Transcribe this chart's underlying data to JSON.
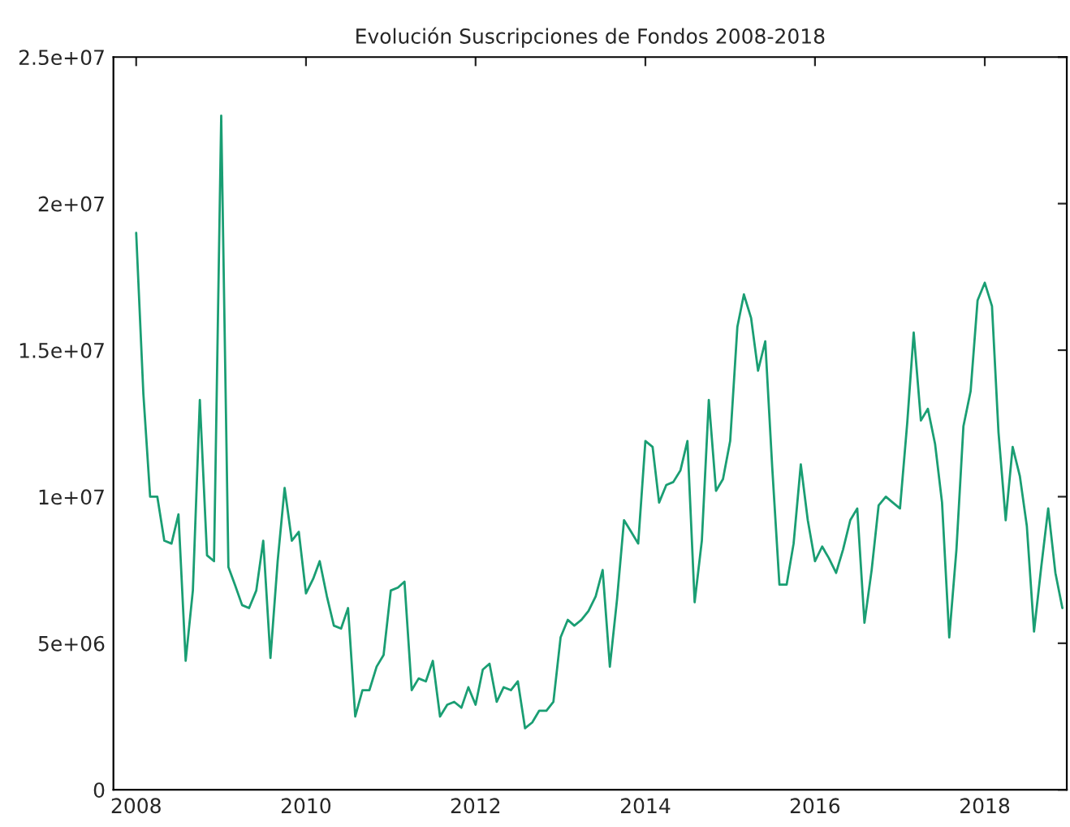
{
  "chart_data": {
    "type": "line",
    "title": "Evolución Suscripciones de Fondos 2008-2018",
    "x": [
      "2008-01",
      "2008-02",
      "2008-03",
      "2008-04",
      "2008-05",
      "2008-06",
      "2008-07",
      "2008-08",
      "2008-09",
      "2008-10",
      "2008-11",
      "2008-12",
      "2009-01",
      "2009-02",
      "2009-03",
      "2009-04",
      "2009-05",
      "2009-06",
      "2009-07",
      "2009-08",
      "2009-09",
      "2009-10",
      "2009-11",
      "2009-12",
      "2010-01",
      "2010-02",
      "2010-03",
      "2010-04",
      "2010-05",
      "2010-06",
      "2010-07",
      "2010-08",
      "2010-09",
      "2010-10",
      "2010-11",
      "2010-12",
      "2011-01",
      "2011-02",
      "2011-03",
      "2011-04",
      "2011-05",
      "2011-06",
      "2011-07",
      "2011-08",
      "2011-09",
      "2011-10",
      "2011-11",
      "2011-12",
      "2012-01",
      "2012-02",
      "2012-03",
      "2012-04",
      "2012-05",
      "2012-06",
      "2012-07",
      "2012-08",
      "2012-09",
      "2012-10",
      "2012-11",
      "2012-12",
      "2013-01",
      "2013-02",
      "2013-03",
      "2013-04",
      "2013-05",
      "2013-06",
      "2013-07",
      "2013-08",
      "2013-09",
      "2013-10",
      "2013-11",
      "2013-12",
      "2014-01",
      "2014-02",
      "2014-03",
      "2014-04",
      "2014-05",
      "2014-06",
      "2014-07",
      "2014-08",
      "2014-09",
      "2014-10",
      "2014-11",
      "2014-12",
      "2015-01",
      "2015-02",
      "2015-03",
      "2015-04",
      "2015-05",
      "2015-06",
      "2015-07",
      "2015-08",
      "2015-09",
      "2015-10",
      "2015-11",
      "2015-12",
      "2016-01",
      "2016-02",
      "2016-03",
      "2016-04",
      "2016-05",
      "2016-06",
      "2016-07",
      "2016-08",
      "2016-09",
      "2016-10",
      "2016-11",
      "2016-12",
      "2017-01",
      "2017-02",
      "2017-03",
      "2017-04",
      "2017-05",
      "2017-06",
      "2017-07",
      "2017-08",
      "2017-09",
      "2017-10",
      "2017-11",
      "2017-12",
      "2018-01",
      "2018-02",
      "2018-03",
      "2018-04",
      "2018-05",
      "2018-06",
      "2018-07",
      "2018-08",
      "2018-09",
      "2018-10",
      "2018-11",
      "2018-12"
    ],
    "series": [
      {
        "color": "#1a9e73",
        "values": [
          19000000,
          13500000,
          10000000,
          10000000,
          8500000,
          8400000,
          9400000,
          4400000,
          6800000,
          13300000,
          8000000,
          7800000,
          23000000,
          7600000,
          7000000,
          6300000,
          6200000,
          6800000,
          8500000,
          4500000,
          7800000,
          10300000,
          8500000,
          8800000,
          6700000,
          7200000,
          7800000,
          6600000,
          5600000,
          5500000,
          6200000,
          2500000,
          3400000,
          3400000,
          4200000,
          4600000,
          6800000,
          6900000,
          7100000,
          3400000,
          3800000,
          3700000,
          4400000,
          2500000,
          2900000,
          3000000,
          2800000,
          3500000,
          2900000,
          4100000,
          4300000,
          3000000,
          3500000,
          3400000,
          3700000,
          2100000,
          2300000,
          2700000,
          2700000,
          3000000,
          5200000,
          5800000,
          5600000,
          5800000,
          6100000,
          6600000,
          7500000,
          4200000,
          6500000,
          9200000,
          8800000,
          8400000,
          11900000,
          11700000,
          9800000,
          10400000,
          10500000,
          10900000,
          11900000,
          6400000,
          8500000,
          13300000,
          10200000,
          10600000,
          11900000,
          15800000,
          16900000,
          16100000,
          14300000,
          15300000,
          11000000,
          7000000,
          7000000,
          8400000,
          11100000,
          9200000,
          7800000,
          8300000,
          7900000,
          7400000,
          8200000,
          9200000,
          9600000,
          5700000,
          7500000,
          9700000,
          10000000,
          9800000,
          9600000,
          12500000,
          15600000,
          12600000,
          13000000,
          11800000,
          9800000,
          5200000,
          8200000,
          12400000,
          13600000,
          16700000,
          17300000,
          16500000,
          12200000,
          9200000,
          11700000,
          10700000,
          9000000,
          5400000,
          7600000,
          9600000,
          7400000,
          6200000
        ]
      }
    ],
    "xlim": [
      "2007-09-25",
      "2018-12-20"
    ],
    "xticks": [
      {
        "value": "2008-01-01",
        "label": "2008"
      },
      {
        "value": "2010-01-01",
        "label": "2010"
      },
      {
        "value": "2012-01-01",
        "label": "2012"
      },
      {
        "value": "2014-01-01",
        "label": "2014"
      },
      {
        "value": "2016-01-01",
        "label": "2016"
      },
      {
        "value": "2018-01-01",
        "label": "2018"
      }
    ],
    "ylim": [
      0,
      25000000
    ],
    "yticks": [
      {
        "value": 0,
        "label": "0"
      },
      {
        "value": 5000000,
        "label": "5e+06"
      },
      {
        "value": 10000000,
        "label": "1e+07"
      },
      {
        "value": 15000000,
        "label": "1.5e+07"
      },
      {
        "value": 20000000,
        "label": "2e+07"
      },
      {
        "value": 25000000,
        "label": "2.5e+07"
      }
    ],
    "grid": false
  }
}
